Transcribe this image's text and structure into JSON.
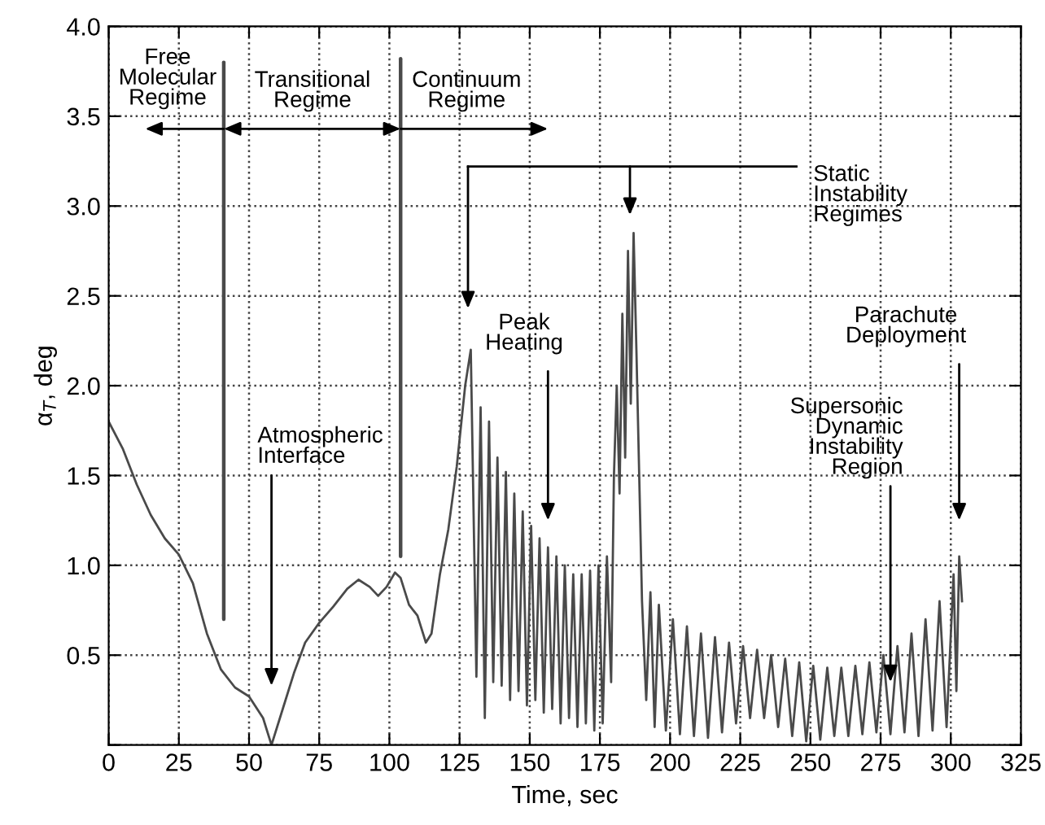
{
  "chart_data": {
    "type": "line",
    "xlabel": "Time, sec",
    "ylabel": "α$_{T}$, deg",
    "xlim": [
      0,
      325
    ],
    "xticks": [
      0,
      25,
      50,
      75,
      100,
      125,
      150,
      175,
      200,
      225,
      250,
      275,
      300,
      325
    ],
    "ylim": [
      0,
      4.0
    ],
    "yticks": [
      {
        "value": 0,
        "label": null
      },
      {
        "value": 0.5,
        "label": "0.5"
      },
      {
        "value": 1.0,
        "label": "1.0"
      },
      {
        "value": 1.5,
        "label": "1.5"
      },
      {
        "value": 2.0,
        "label": "2.0"
      },
      {
        "value": 2.5,
        "label": "2.5"
      },
      {
        "value": 3.0,
        "label": "3.0"
      },
      {
        "value": 3.5,
        "label": "3.5"
      },
      {
        "value": 4.0,
        "label": "4.0"
      }
    ],
    "grid": true,
    "marker": "none",
    "line_style": "solid",
    "series": [
      {
        "color": "#4a4a4a",
        "x": [
          0,
          5,
          10,
          15,
          20,
          25,
          30,
          35,
          40,
          45,
          50,
          55,
          58,
          62,
          66,
          70,
          75,
          80,
          85,
          89,
          93,
          96,
          99,
          102,
          104,
          107,
          110,
          113,
          115,
          118,
          121,
          124,
          127,
          129,
          131,
          132.5,
          134,
          135.5,
          137,
          138.5,
          140,
          141.5,
          143,
          144.5,
          146,
          147.5,
          149,
          150.5,
          152,
          153.5,
          155,
          156.5,
          158,
          159.5,
          161,
          162.5,
          164,
          165.5,
          167,
          168.5,
          170,
          171.5,
          173,
          174.5,
          176,
          177.5,
          179,
          180,
          181,
          182,
          183,
          184,
          185,
          186,
          187,
          188,
          189,
          190,
          191.5,
          193,
          194.5,
          196,
          198.5,
          201,
          203.5,
          206,
          208.5,
          211,
          213.5,
          216,
          218.5,
          221,
          223.5,
          226,
          228.5,
          231,
          233.5,
          236,
          238.5,
          241,
          243.5,
          246,
          248.5,
          251,
          253.5,
          256,
          258.5,
          261,
          263.5,
          266,
          268.5,
          271,
          273.5,
          276,
          278.5,
          281,
          283.5,
          286,
          288.5,
          291,
          293.5,
          296,
          298.5,
          301,
          302,
          303,
          304
        ],
        "values": [
          1.8,
          1.65,
          1.45,
          1.28,
          1.15,
          1.06,
          0.9,
          0.62,
          0.42,
          0.32,
          0.27,
          0.15,
          0.0,
          0.2,
          0.4,
          0.57,
          0.68,
          0.77,
          0.87,
          0.92,
          0.88,
          0.83,
          0.88,
          0.96,
          0.93,
          0.78,
          0.72,
          0.57,
          0.62,
          0.95,
          1.2,
          1.55,
          2.0,
          2.2,
          0.38,
          1.88,
          0.15,
          1.8,
          0.35,
          1.6,
          0.33,
          1.52,
          0.25,
          1.4,
          0.3,
          1.3,
          0.22,
          1.22,
          0.25,
          1.15,
          0.18,
          1.1,
          0.2,
          1.05,
          0.12,
          1.0,
          0.15,
          0.95,
          0.1,
          0.95,
          0.12,
          0.97,
          0.08,
          1.0,
          0.12,
          1.05,
          0.35,
          1.5,
          2.0,
          1.4,
          2.4,
          1.6,
          2.75,
          1.9,
          2.85,
          2.2,
          1.5,
          0.8,
          0.25,
          0.85,
          0.1,
          0.78,
          0.08,
          0.7,
          0.06,
          0.66,
          0.05,
          0.62,
          0.04,
          0.6,
          0.07,
          0.57,
          0.12,
          0.55,
          0.15,
          0.53,
          0.15,
          0.5,
          0.1,
          0.48,
          0.05,
          0.46,
          0.02,
          0.44,
          0.03,
          0.43,
          0.05,
          0.43,
          0.05,
          0.44,
          0.06,
          0.46,
          0.07,
          0.5,
          0.06,
          0.55,
          0.07,
          0.62,
          0.05,
          0.7,
          0.08,
          0.8,
          0.1,
          0.95,
          0.3,
          1.05,
          0.8
        ]
      }
    ],
    "annotations": [
      "Free\nMolecular\nRegime",
      "Transitional\nRegime",
      "Continuum\nRegime",
      "Static\nInstability\nRegimes",
      "Peak\nHeating",
      "Atmospheric\nInterface",
      {
        "text": "Supersonic\nDynamic\nInstability\nRegion",
        "x": 278.5,
        "y": 0.35
      },
      "Parachute\nDeployment"
    ]
  }
}
